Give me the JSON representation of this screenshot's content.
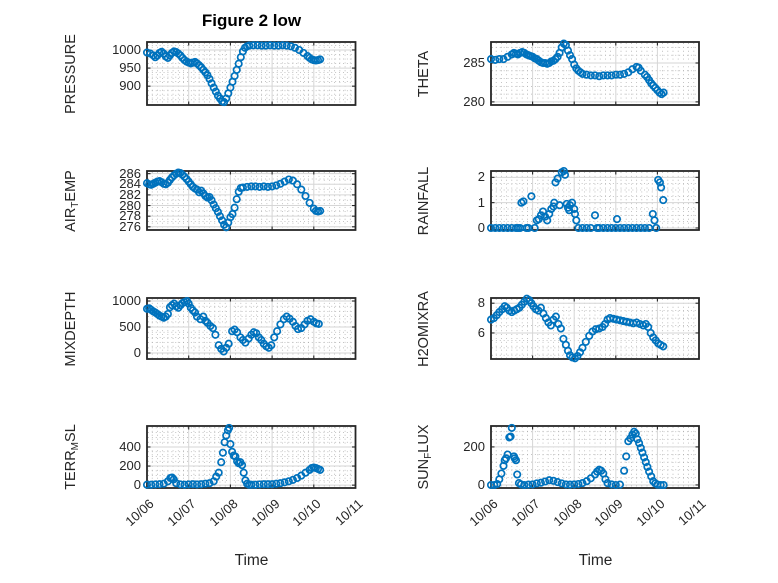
{
  "title": "Figure 2 low",
  "xlabel": "Time",
  "colors": {
    "marker": "#0072BD",
    "axis": "#262626",
    "grid_major": "#d6d6d6",
    "grid_minor": "#a8a8a8",
    "background": "#ffffff"
  },
  "x_axis": {
    "label": "Time",
    "tick_labels": [
      "10/06",
      "10/07",
      "10/08",
      "10/09",
      "10/10",
      "10/11"
    ],
    "range_days": [
      0,
      5
    ],
    "minor_step_days": 0.125
  },
  "chart_data": [
    {
      "id": "pressure",
      "type": "scatter",
      "marker": "open-circle",
      "ylabel": "PRESSURE",
      "ylabel_parts": [
        {
          "text": "PRESSURE",
          "subscript": false
        }
      ],
      "ylim": [
        848,
        1022
      ],
      "yticks": [
        900,
        950,
        1000
      ],
      "y_minor_step": 12.5,
      "x_days": [
        0,
        0.08,
        0.15,
        0.2,
        0.25,
        0.3,
        0.35,
        0.4,
        0.45,
        0.5,
        0.55,
        0.6,
        0.65,
        0.7,
        0.75,
        0.8,
        0.85,
        0.9,
        0.95,
        1.0,
        1.05,
        1.1,
        1.15,
        1.2,
        1.25,
        1.3,
        1.35,
        1.4,
        1.45,
        1.5,
        1.55,
        1.6,
        1.65,
        1.7,
        1.75,
        1.8,
        1.85,
        1.9,
        1.95,
        2.0,
        2.05,
        2.1,
        2.15,
        2.2,
        2.25,
        2.3,
        2.35,
        2.4,
        2.45,
        2.55,
        2.65,
        2.75,
        2.85,
        2.95,
        3.05,
        3.15,
        3.25,
        3.35,
        3.45,
        3.55,
        3.65,
        3.75,
        3.85,
        3.9,
        3.95,
        4.0,
        4.05,
        4.1,
        4.15
      ],
      "values": [
        993,
        990,
        985,
        980,
        985,
        992,
        995,
        990,
        982,
        978,
        985,
        992,
        996,
        994,
        990,
        985,
        978,
        972,
        968,
        965,
        963,
        965,
        967,
        963,
        958,
        952,
        945,
        938,
        930,
        920,
        908,
        896,
        885,
        874,
        866,
        858,
        856,
        866,
        880,
        896,
        912,
        928,
        945,
        962,
        980,
        996,
        1006,
        1010,
        1012,
        1013,
        1013,
        1012,
        1012,
        1013,
        1012,
        1012,
        1013,
        1012,
        1010,
        1006,
        1000,
        992,
        983,
        978,
        974,
        972,
        971,
        972,
        974
      ]
    },
    {
      "id": "theta",
      "type": "scatter",
      "marker": "open-circle",
      "ylabel": "THETA",
      "ylabel_parts": [
        {
          "text": "THETA",
          "subscript": false
        }
      ],
      "ylim": [
        279.6,
        287.7
      ],
      "yticks": [
        280,
        285
      ],
      "y_minor_step": 1,
      "x_days": [
        0,
        0.1,
        0.2,
        0.3,
        0.4,
        0.5,
        0.55,
        0.6,
        0.65,
        0.7,
        0.75,
        0.8,
        0.85,
        0.9,
        0.95,
        1.0,
        1.05,
        1.1,
        1.15,
        1.2,
        1.25,
        1.3,
        1.35,
        1.4,
        1.45,
        1.5,
        1.55,
        1.6,
        1.65,
        1.7,
        1.75,
        1.8,
        1.85,
        1.9,
        1.95,
        2.0,
        2.05,
        2.1,
        2.15,
        2.2,
        2.3,
        2.4,
        2.5,
        2.6,
        2.7,
        2.8,
        2.9,
        3.0,
        3.1,
        3.2,
        3.3,
        3.4,
        3.5,
        3.55,
        3.6,
        3.7,
        3.75,
        3.8,
        3.85,
        3.9,
        3.95,
        4.0,
        4.05,
        4.1,
        4.15
      ],
      "values": [
        285.5,
        285.4,
        285.5,
        285.5,
        285.8,
        286.1,
        286.3,
        286.2,
        286.1,
        286.3,
        286.4,
        286.3,
        286.1,
        286.0,
        285.9,
        285.8,
        285.6,
        285.5,
        285.3,
        285.1,
        285.0,
        285.0,
        284.9,
        285.0,
        285.2,
        285.3,
        285.5,
        285.8,
        286.3,
        287.0,
        287.5,
        287.3,
        286.6,
        286.0,
        285.5,
        284.8,
        284.3,
        284.0,
        283.8,
        283.6,
        283.5,
        283.4,
        283.4,
        283.3,
        283.4,
        283.4,
        283.4,
        283.5,
        283.5,
        283.6,
        283.8,
        284.2,
        284.5,
        284.4,
        284.0,
        283.5,
        283.2,
        282.8,
        282.4,
        282.1,
        281.8,
        281.5,
        281.2,
        281.0,
        281.2
      ]
    },
    {
      "id": "air_temp",
      "type": "scatter",
      "marker": "open-circle",
      "ylabel": "AIR_TEMP",
      "ylabel_parts": [
        {
          "text": "AIR",
          "subscript": false
        },
        {
          "text": "T",
          "subscript": true
        },
        {
          "text": "EMP",
          "subscript": false
        }
      ],
      "ylim": [
        275.4,
        286.5
      ],
      "yticks": [
        276,
        278,
        280,
        282,
        284,
        286
      ],
      "y_minor_step": 1,
      "x_days": [
        0,
        0.05,
        0.1,
        0.15,
        0.2,
        0.25,
        0.3,
        0.35,
        0.4,
        0.45,
        0.5,
        0.55,
        0.6,
        0.65,
        0.7,
        0.75,
        0.8,
        0.85,
        0.9,
        0.95,
        1.0,
        1.05,
        1.1,
        1.15,
        1.2,
        1.25,
        1.3,
        1.35,
        1.4,
        1.45,
        1.5,
        1.55,
        1.6,
        1.65,
        1.7,
        1.75,
        1.8,
        1.85,
        1.9,
        1.95,
        2.0,
        2.05,
        2.1,
        2.15,
        2.2,
        2.25,
        2.3,
        2.4,
        2.5,
        2.6,
        2.7,
        2.8,
        2.9,
        3.0,
        3.1,
        3.2,
        3.3,
        3.4,
        3.5,
        3.6,
        3.7,
        3.8,
        3.9,
        4.0,
        4.05,
        4.1,
        4.15
      ],
      "values": [
        284.2,
        284.0,
        283.9,
        284.1,
        284.3,
        284.5,
        284.6,
        284.4,
        284.1,
        284.0,
        284.3,
        284.8,
        285.3,
        285.7,
        286.0,
        286.2,
        286.1,
        285.8,
        285.4,
        285.0,
        284.5,
        284.0,
        283.5,
        283.2,
        283.0,
        282.5,
        282.8,
        282.3,
        281.8,
        281.5,
        281.6,
        281.0,
        280.2,
        279.5,
        278.8,
        278.0,
        277.2,
        276.4,
        275.9,
        276.8,
        277.8,
        278.4,
        279.6,
        281.2,
        282.6,
        283.3,
        283.4,
        283.5,
        283.6,
        283.6,
        283.5,
        283.6,
        283.5,
        283.6,
        283.8,
        284.1,
        284.5,
        284.9,
        284.7,
        284.0,
        283.0,
        281.8,
        280.5,
        279.4,
        279.0,
        278.9,
        279.0
      ]
    },
    {
      "id": "rainfall",
      "type": "scatter",
      "marker": "open-circle",
      "ylabel": "RAINFALL",
      "ylabel_parts": [
        {
          "text": "RAINFALL",
          "subscript": false
        }
      ],
      "ylim": [
        -0.08,
        2.25
      ],
      "yticks": [
        0,
        1,
        2
      ],
      "y_minor_step": 0.25,
      "x_days": [
        0,
        0.1,
        0.2,
        0.3,
        0.4,
        0.5,
        0.6,
        0.65,
        0.7,
        0.73,
        0.78,
        0.85,
        0.9,
        0.97,
        1.05,
        1.1,
        1.15,
        1.2,
        1.25,
        1.3,
        1.35,
        1.4,
        1.45,
        1.5,
        1.52,
        1.55,
        1.6,
        1.65,
        1.7,
        1.75,
        1.78,
        1.82,
        1.85,
        1.88,
        1.9,
        1.95,
        2.0,
        2.02,
        2.05,
        2.1,
        2.2,
        2.3,
        2.4,
        2.5,
        2.55,
        2.6,
        2.7,
        2.8,
        2.9,
        3.0,
        3.03,
        3.1,
        3.2,
        3.3,
        3.4,
        3.5,
        3.6,
        3.7,
        3.8,
        3.89,
        3.93,
        3.97,
        4.02,
        4.06,
        4.09,
        4.14
      ],
      "values": [
        0,
        0,
        0,
        0,
        0,
        0,
        0,
        0,
        0,
        1.0,
        1.05,
        0,
        0,
        1.25,
        0,
        0.3,
        0.35,
        0.5,
        0.65,
        0.45,
        0.3,
        0.55,
        0.75,
        0.85,
        1.0,
        1.8,
        1.95,
        0.9,
        2.2,
        2.25,
        2.1,
        0.95,
        0.8,
        0.7,
        0.9,
        1.0,
        0.75,
        0.55,
        0.3,
        0,
        0,
        0,
        0,
        0.5,
        0,
        0,
        0,
        0,
        0,
        0,
        0.35,
        0,
        0,
        0,
        0,
        0,
        0,
        0,
        0,
        0.55,
        0.3,
        0,
        1.9,
        1.8,
        1.6,
        1.1
      ]
    },
    {
      "id": "mixdepth",
      "type": "scatter",
      "marker": "open-circle",
      "ylabel": "MIXDEPTH",
      "ylabel_parts": [
        {
          "text": "MIXDEPTH",
          "subscript": false
        }
      ],
      "ylim": [
        -115,
        1058
      ],
      "yticks": [
        0,
        500,
        1000
      ],
      "y_minor_step": 100,
      "x_days": [
        0,
        0.05,
        0.1,
        0.15,
        0.2,
        0.25,
        0.3,
        0.35,
        0.4,
        0.45,
        0.5,
        0.55,
        0.6,
        0.65,
        0.7,
        0.75,
        0.8,
        0.85,
        0.9,
        0.96,
        1.0,
        1.05,
        1.1,
        1.15,
        1.2,
        1.28,
        1.35,
        1.4,
        1.45,
        1.52,
        1.58,
        1.64,
        1.72,
        1.78,
        1.84,
        1.9,
        1.96,
        2.04,
        2.1,
        2.16,
        2.24,
        2.3,
        2.36,
        2.44,
        2.5,
        2.56,
        2.62,
        2.68,
        2.74,
        2.8,
        2.86,
        2.92,
        2.98,
        3.05,
        3.12,
        3.2,
        3.28,
        3.35,
        3.42,
        3.5,
        3.56,
        3.62,
        3.7,
        3.78,
        3.85,
        3.92,
        4.0,
        4.06,
        4.12
      ],
      "values": [
        850,
        860,
        830,
        800,
        780,
        750,
        720,
        700,
        680,
        700,
        750,
        880,
        920,
        950,
        900,
        870,
        920,
        960,
        980,
        1000,
        950,
        870,
        820,
        780,
        700,
        650,
        700,
        620,
        580,
        520,
        480,
        350,
        150,
        80,
        30,
        100,
        180,
        420,
        450,
        400,
        300,
        250,
        200,
        280,
        350,
        400,
        380,
        300,
        250,
        180,
        130,
        100,
        150,
        300,
        420,
        550,
        650,
        700,
        660,
        600,
        520,
        460,
        480,
        550,
        620,
        650,
        600,
        570,
        560
      ]
    },
    {
      "id": "h2omixra",
      "type": "scatter",
      "marker": "open-circle",
      "ylabel": "H2OMIXRA",
      "ylabel_parts": [
        {
          "text": "H2OMIXRA",
          "subscript": false
        }
      ],
      "ylim": [
        4.25,
        8.35
      ],
      "yticks": [
        6,
        8
      ],
      "y_minor_step": 0.5,
      "x_days": [
        0,
        0.07,
        0.14,
        0.2,
        0.27,
        0.33,
        0.38,
        0.44,
        0.5,
        0.56,
        0.62,
        0.68,
        0.74,
        0.8,
        0.86,
        0.92,
        0.97,
        1.02,
        1.08,
        1.14,
        1.2,
        1.26,
        1.32,
        1.38,
        1.44,
        1.5,
        1.56,
        1.62,
        1.68,
        1.74,
        1.8,
        1.85,
        1.9,
        1.96,
        2.02,
        2.08,
        2.14,
        2.2,
        2.28,
        2.36,
        2.44,
        2.52,
        2.6,
        2.68,
        2.74,
        2.8,
        2.86,
        2.94,
        3.02,
        3.1,
        3.18,
        3.26,
        3.34,
        3.42,
        3.5,
        3.58,
        3.66,
        3.72,
        3.78,
        3.84,
        3.9,
        3.96,
        4.02,
        4.08,
        4.14
      ],
      "values": [
        6.9,
        7.0,
        7.2,
        7.4,
        7.6,
        7.8,
        7.7,
        7.5,
        7.4,
        7.5,
        7.6,
        7.7,
        7.9,
        8.1,
        8.3,
        8.2,
        8.0,
        7.8,
        7.6,
        7.5,
        7.7,
        7.3,
        7.0,
        6.7,
        6.5,
        6.9,
        7.1,
        6.6,
        6.3,
        5.6,
        5.2,
        4.8,
        4.5,
        4.35,
        4.3,
        4.45,
        4.7,
        5.0,
        5.4,
        5.8,
        6.1,
        6.25,
        6.3,
        6.4,
        6.6,
        6.9,
        7.0,
        6.95,
        6.9,
        6.85,
        6.8,
        6.75,
        6.7,
        6.65,
        6.7,
        6.6,
        6.5,
        6.6,
        6.4,
        6.0,
        5.7,
        5.5,
        5.3,
        5.2,
        5.1
      ]
    },
    {
      "id": "terr_msl",
      "type": "scatter",
      "marker": "open-circle",
      "ylabel": "TERR_MSL",
      "ylabel_parts": [
        {
          "text": "TERR",
          "subscript": false
        },
        {
          "text": "M",
          "subscript": true
        },
        {
          "text": "SL",
          "subscript": false
        }
      ],
      "ylim": [
        -30,
        620
      ],
      "yticks": [
        0,
        200,
        400
      ],
      "y_minor_step": 50,
      "x_days": [
        0,
        0.1,
        0.2,
        0.3,
        0.4,
        0.5,
        0.56,
        0.6,
        0.64,
        0.7,
        0.8,
        0.9,
        1.0,
        1.1,
        1.2,
        1.3,
        1.4,
        1.5,
        1.6,
        1.66,
        1.72,
        1.78,
        1.82,
        1.86,
        1.9,
        1.94,
        1.97,
        2.0,
        2.04,
        2.08,
        2.12,
        2.16,
        2.2,
        2.24,
        2.28,
        2.32,
        2.36,
        2.4,
        2.45,
        2.5,
        2.6,
        2.7,
        2.8,
        2.9,
        3.0,
        3.1,
        3.2,
        3.3,
        3.4,
        3.5,
        3.6,
        3.7,
        3.8,
        3.9,
        3.95,
        4.0,
        4.05,
        4.1,
        4.15
      ],
      "values": [
        5,
        5,
        8,
        10,
        15,
        40,
        75,
        80,
        60,
        20,
        8,
        5,
        8,
        10,
        8,
        10,
        15,
        20,
        40,
        90,
        130,
        240,
        340,
        450,
        520,
        575,
        600,
        430,
        350,
        310,
        300,
        250,
        230,
        240,
        210,
        130,
        50,
        15,
        5,
        5,
        5,
        8,
        10,
        10,
        10,
        15,
        20,
        30,
        40,
        55,
        75,
        100,
        130,
        160,
        180,
        185,
        180,
        170,
        160
      ]
    },
    {
      "id": "sun_flux",
      "type": "scatter",
      "marker": "open-circle",
      "ylabel": "SUN_FLUX",
      "ylabel_parts": [
        {
          "text": "SUN",
          "subscript": false
        },
        {
          "text": "F",
          "subscript": true
        },
        {
          "text": "LUX",
          "subscript": false
        }
      ],
      "ylim": [
        -16,
        310
      ],
      "yticks": [
        0,
        200
      ],
      "y_minor_step": 40,
      "x_days": [
        0,
        0.08,
        0.15,
        0.2,
        0.25,
        0.3,
        0.33,
        0.36,
        0.4,
        0.44,
        0.47,
        0.5,
        0.55,
        0.57,
        0.6,
        0.63,
        0.67,
        0.72,
        0.8,
        0.9,
        1.0,
        1.1,
        1.2,
        1.3,
        1.4,
        1.5,
        1.6,
        1.7,
        1.8,
        1.9,
        2.0,
        2.1,
        2.2,
        2.3,
        2.4,
        2.5,
        2.55,
        2.6,
        2.65,
        2.7,
        2.75,
        2.8,
        2.9,
        3.0,
        3.1,
        3.2,
        3.25,
        3.3,
        3.35,
        3.4,
        3.44,
        3.48,
        3.52,
        3.56,
        3.6,
        3.64,
        3.68,
        3.72,
        3.76,
        3.8,
        3.85,
        3.9,
        3.95,
        4.0,
        4.08,
        4.15
      ],
      "values": [
        0,
        0,
        5,
        30,
        60,
        100,
        130,
        140,
        160,
        250,
        255,
        300,
        150,
        140,
        130,
        55,
        10,
        3,
        0,
        2,
        3,
        8,
        12,
        18,
        25,
        22,
        15,
        8,
        3,
        2,
        3,
        5,
        10,
        20,
        35,
        55,
        70,
        80,
        75,
        60,
        30,
        10,
        3,
        0,
        2,
        75,
        150,
        230,
        245,
        265,
        280,
        270,
        240,
        220,
        195,
        170,
        145,
        120,
        95,
        70,
        45,
        20,
        8,
        2,
        0,
        0
      ]
    }
  ]
}
